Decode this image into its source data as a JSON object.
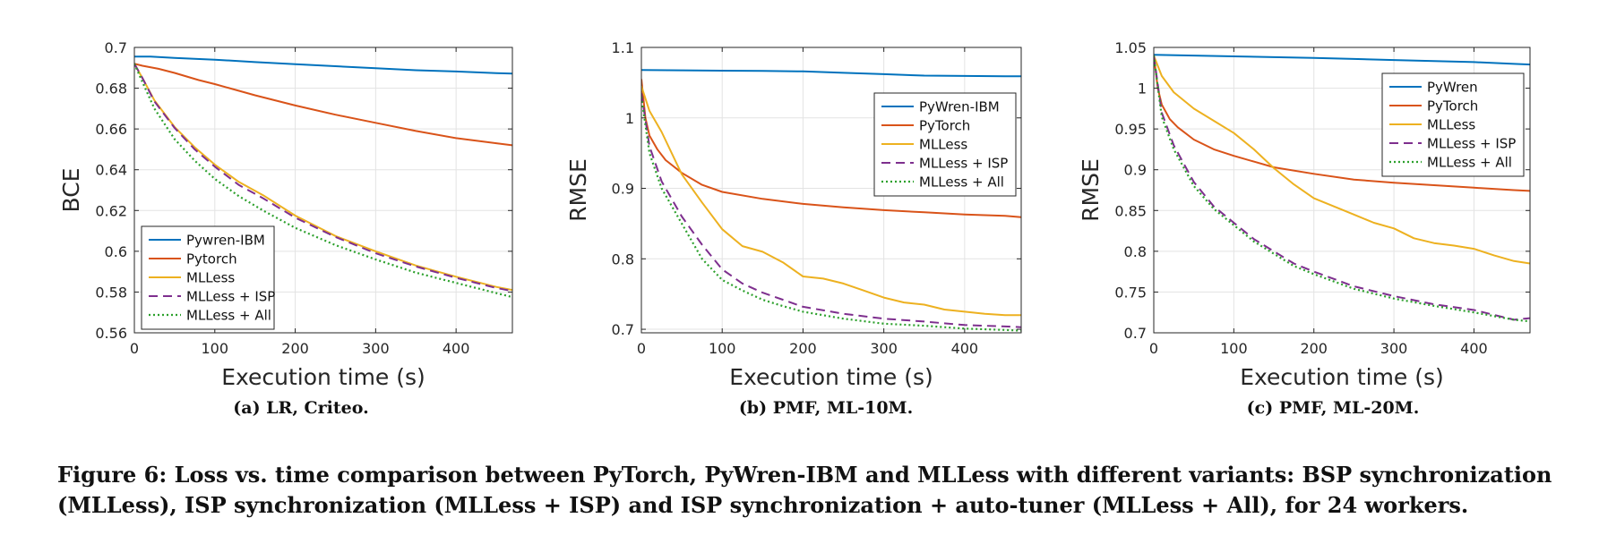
{
  "chart_data": [
    {
      "type": "line",
      "subcaption": "(a) LR, Criteo.",
      "xlabel": "Execution time (s)",
      "ylabel": "BCE",
      "xlim": [
        0,
        470
      ],
      "ylim": [
        0.56,
        0.7
      ],
      "xticks": [
        0,
        100,
        200,
        300,
        400
      ],
      "yticks": [
        0.56,
        0.58,
        0.6,
        0.62,
        0.64,
        0.66,
        0.68,
        0.7
      ],
      "ytick_labels": [
        "0.56",
        "0.58",
        "0.6",
        "0.62",
        "0.64",
        "0.66",
        "0.68",
        "0.7"
      ],
      "grid": true,
      "legend_position": "bottom-left",
      "series": [
        {
          "name": "Pywren-IBM",
          "color": "#0072BD",
          "dash": "solid",
          "x": [
            0,
            20,
            50,
            100,
            150,
            200,
            250,
            300,
            350,
            400,
            450,
            470
          ],
          "y": [
            0.6955,
            0.6955,
            0.6948,
            0.694,
            0.6928,
            0.6918,
            0.6908,
            0.6898,
            0.6888,
            0.6882,
            0.6874,
            0.6872
          ]
        },
        {
          "name": "Pytorch",
          "color": "#D95319",
          "dash": "solid",
          "x": [
            0,
            10,
            30,
            50,
            80,
            100,
            150,
            200,
            250,
            300,
            350,
            400,
            450,
            470
          ],
          "y": [
            0.692,
            0.691,
            0.6895,
            0.6875,
            0.684,
            0.682,
            0.6765,
            0.6715,
            0.667,
            0.663,
            0.659,
            0.6555,
            0.653,
            0.652
          ]
        },
        {
          "name": "MLLess",
          "color": "#EDB120",
          "dash": "solid",
          "x": [
            0,
            10,
            25,
            50,
            75,
            100,
            130,
            160,
            200,
            250,
            300,
            350,
            400,
            450,
            470
          ],
          "y": [
            0.692,
            0.685,
            0.674,
            0.661,
            0.651,
            0.6425,
            0.634,
            0.6275,
            0.6175,
            0.6075,
            0.6,
            0.593,
            0.5875,
            0.5825,
            0.581
          ]
        },
        {
          "name": "MLLess + ISP",
          "color": "#7E2F8E",
          "dash": "10 6",
          "x": [
            0,
            10,
            25,
            50,
            75,
            100,
            130,
            160,
            200,
            250,
            300,
            350,
            400,
            450,
            470
          ],
          "y": [
            0.692,
            0.685,
            0.6735,
            0.6605,
            0.65,
            0.6415,
            0.6325,
            0.626,
            0.6165,
            0.607,
            0.599,
            0.5925,
            0.587,
            0.582,
            0.5805
          ]
        },
        {
          "name": "MLLess + All",
          "color": "#2ca02c",
          "dash": "2 3",
          "x": [
            0,
            10,
            25,
            50,
            75,
            100,
            130,
            160,
            200,
            250,
            300,
            350,
            400,
            450,
            470
          ],
          "y": [
            0.692,
            0.683,
            0.67,
            0.655,
            0.6445,
            0.6355,
            0.627,
            0.62,
            0.6115,
            0.603,
            0.596,
            0.5895,
            0.5845,
            0.5795,
            0.5775
          ]
        }
      ]
    },
    {
      "type": "line",
      "subcaption": "(b) PMF, ML-10M.",
      "xlabel": "Execution time (s)",
      "ylabel": "RMSE",
      "xlim": [
        0,
        470
      ],
      "ylim": [
        0.695,
        1.1
      ],
      "xticks": [
        0,
        100,
        200,
        300,
        400
      ],
      "yticks": [
        0.7,
        0.8,
        0.9,
        1.0,
        1.1
      ],
      "ytick_labels": [
        "0.7",
        "0.8",
        "0.9",
        "1",
        "1.1"
      ],
      "grid": true,
      "legend_position": "top-right",
      "series": [
        {
          "name": "PyWren-IBM",
          "color": "#0072BD",
          "dash": "solid",
          "x": [
            0,
            50,
            100,
            150,
            200,
            250,
            300,
            350,
            400,
            450,
            470
          ],
          "y": [
            1.068,
            1.0675,
            1.067,
            1.0668,
            1.066,
            1.064,
            1.062,
            1.06,
            1.0595,
            1.059,
            1.059
          ]
        },
        {
          "name": "PyTorch",
          "color": "#D95319",
          "dash": "solid",
          "x": [
            0,
            5,
            10,
            20,
            30,
            50,
            75,
            100,
            150,
            200,
            250,
            300,
            350,
            400,
            450,
            470
          ],
          "y": [
            1.055,
            1.0,
            0.975,
            0.955,
            0.94,
            0.922,
            0.905,
            0.895,
            0.885,
            0.878,
            0.873,
            0.869,
            0.866,
            0.863,
            0.861,
            0.859
          ]
        },
        {
          "name": "MLLess",
          "color": "#EDB120",
          "dash": "solid",
          "x": [
            0,
            10,
            25,
            50,
            75,
            100,
            125,
            150,
            175,
            200,
            225,
            250,
            275,
            300,
            325,
            350,
            375,
            400,
            425,
            450,
            470
          ],
          "y": [
            1.045,
            1.01,
            0.98,
            0.92,
            0.88,
            0.842,
            0.818,
            0.81,
            0.795,
            0.775,
            0.772,
            0.765,
            0.755,
            0.745,
            0.738,
            0.735,
            0.728,
            0.725,
            0.722,
            0.72,
            0.72
          ]
        },
        {
          "name": "MLLess + ISP",
          "color": "#7E2F8E",
          "dash": "10 6",
          "x": [
            0,
            10,
            25,
            50,
            75,
            100,
            125,
            150,
            175,
            200,
            250,
            300,
            350,
            400,
            450,
            470
          ],
          "y": [
            1.035,
            0.96,
            0.91,
            0.86,
            0.82,
            0.785,
            0.765,
            0.752,
            0.742,
            0.732,
            0.722,
            0.715,
            0.711,
            0.706,
            0.704,
            0.703
          ]
        },
        {
          "name": "MLLess + All",
          "color": "#2ca02c",
          "dash": "2 3",
          "x": [
            0,
            10,
            25,
            50,
            75,
            100,
            125,
            150,
            175,
            200,
            250,
            300,
            350,
            400,
            450,
            470
          ],
          "y": [
            1.03,
            0.95,
            0.9,
            0.85,
            0.8,
            0.77,
            0.755,
            0.742,
            0.733,
            0.725,
            0.715,
            0.708,
            0.705,
            0.701,
            0.699,
            0.698
          ]
        }
      ]
    },
    {
      "type": "line",
      "subcaption": "(c) PMF, ML-20M.",
      "xlabel": "Execution time (s)",
      "ylabel": "RMSE",
      "xlim": [
        0,
        470
      ],
      "ylim": [
        0.7,
        1.05
      ],
      "xticks": [
        0,
        100,
        200,
        300,
        400
      ],
      "yticks": [
        0.7,
        0.75,
        0.8,
        0.85,
        0.9,
        0.95,
        1.0,
        1.05
      ],
      "ytick_labels": [
        "0.7",
        "0.75",
        "0.8",
        "0.85",
        "0.9",
        "0.95",
        "1",
        "1.05"
      ],
      "grid": true,
      "legend_position": "top-right",
      "series": [
        {
          "name": "PyWren",
          "color": "#0072BD",
          "dash": "solid",
          "x": [
            0,
            50,
            100,
            150,
            200,
            250,
            300,
            350,
            400,
            450,
            470
          ],
          "y": [
            1.041,
            1.04,
            1.039,
            1.038,
            1.037,
            1.0358,
            1.0345,
            1.0333,
            1.032,
            1.0298,
            1.029
          ]
        },
        {
          "name": "PyTorch",
          "color": "#D95319",
          "dash": "solid",
          "x": [
            0,
            5,
            10,
            20,
            30,
            50,
            75,
            100,
            125,
            150,
            200,
            250,
            300,
            350,
            400,
            450,
            470
          ],
          "y": [
            1.04,
            1.0,
            0.98,
            0.962,
            0.952,
            0.937,
            0.925,
            0.917,
            0.91,
            0.903,
            0.895,
            0.888,
            0.884,
            0.881,
            0.878,
            0.875,
            0.874
          ]
        },
        {
          "name": "MLLess",
          "color": "#EDB120",
          "dash": "solid",
          "x": [
            0,
            10,
            25,
            50,
            75,
            100,
            125,
            150,
            175,
            200,
            225,
            250,
            275,
            300,
            325,
            350,
            375,
            400,
            425,
            450,
            470
          ],
          "y": [
            1.04,
            1.015,
            0.995,
            0.975,
            0.96,
            0.945,
            0.925,
            0.902,
            0.882,
            0.865,
            0.855,
            0.845,
            0.835,
            0.828,
            0.816,
            0.81,
            0.807,
            0.803,
            0.795,
            0.788,
            0.785
          ]
        },
        {
          "name": "MLLess + ISP",
          "color": "#7E2F8E",
          "dash": "10 6",
          "x": [
            0,
            10,
            25,
            50,
            75,
            100,
            125,
            150,
            175,
            200,
            250,
            300,
            350,
            400,
            450,
            470
          ],
          "y": [
            1.04,
            0.97,
            0.93,
            0.885,
            0.855,
            0.835,
            0.815,
            0.8,
            0.785,
            0.775,
            0.757,
            0.745,
            0.735,
            0.728,
            0.716,
            0.718
          ]
        },
        {
          "name": "MLLess + All",
          "color": "#2ca02c",
          "dash": "2 3",
          "x": [
            0,
            10,
            25,
            50,
            75,
            100,
            125,
            150,
            175,
            200,
            250,
            300,
            350,
            400,
            450,
            470
          ],
          "y": [
            1.04,
            0.965,
            0.925,
            0.88,
            0.852,
            0.832,
            0.812,
            0.797,
            0.782,
            0.772,
            0.754,
            0.742,
            0.733,
            0.725,
            0.716,
            0.714
          ]
        }
      ]
    }
  ],
  "caption": "Figure 6: Loss vs. time comparison between PyTorch, PyWren-IBM and MLLess with different variants: BSP synchronization (MLLess), ISP synchronization (MLLess + ISP) and ISP synchronization + auto-tuner (MLLess + All), for 24 workers."
}
